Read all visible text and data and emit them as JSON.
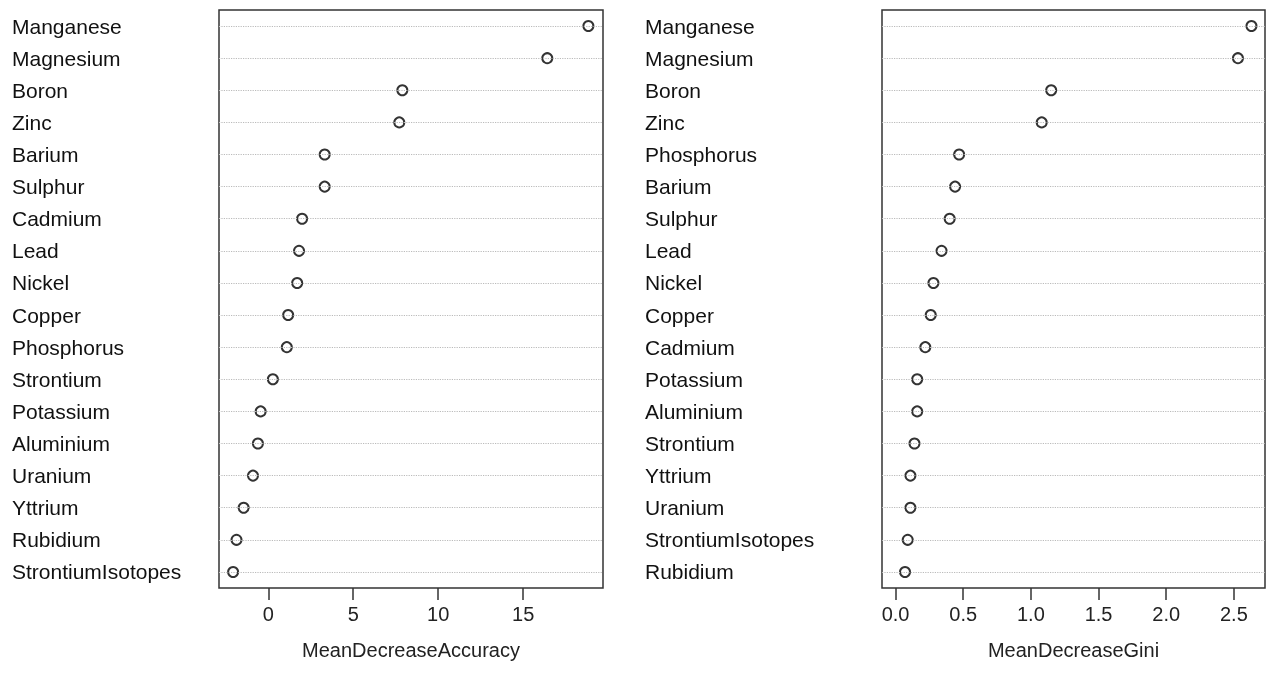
{
  "chart_data": [
    {
      "type": "scatter",
      "xlabel": "MeanDecreaseAccuracy",
      "categories": [
        "Manganese",
        "Magnesium",
        "Boron",
        "Zinc",
        "Barium",
        "Sulphur",
        "Cadmium",
        "Lead",
        "Nickel",
        "Copper",
        "Phosphorus",
        "Strontium",
        "Potassium",
        "Aluminium",
        "Uranium",
        "Yttrium",
        "Rubidium",
        "StrontiumIsotopes"
      ],
      "values": [
        18.84,
        16.42,
        7.89,
        7.71,
        3.32,
        3.32,
        1.99,
        1.81,
        1.7,
        1.17,
        1.09,
        0.27,
        -0.45,
        -0.61,
        -0.9,
        -1.45,
        -1.87,
        -2.07
      ],
      "color": "#000000",
      "marker": "circle",
      "grid": "y",
      "orientation": "horizontal",
      "xlim": [
        -2.9,
        19.7
      ],
      "xticks": [
        0,
        5,
        10,
        15
      ]
    },
    {
      "type": "scatter",
      "xlabel": "MeanDecreaseGini",
      "categories": [
        "Manganese",
        "Magnesium",
        "Boron",
        "Zinc",
        "Phosphorus",
        "Barium",
        "Sulphur",
        "Lead",
        "Nickel",
        "Copper",
        "Cadmium",
        "Potassium",
        "Aluminium",
        "Strontium",
        "Yttrium",
        "Uranium",
        "StrontiumIsotopes",
        "Rubidium"
      ],
      "values": [
        2.63,
        2.53,
        1.15,
        1.08,
        0.47,
        0.44,
        0.4,
        0.34,
        0.28,
        0.26,
        0.22,
        0.16,
        0.16,
        0.14,
        0.11,
        0.11,
        0.09,
        0.07
      ],
      "color": "#000000",
      "marker": "circle",
      "grid": "y",
      "orientation": "horizontal",
      "xlim": [
        -0.1,
        2.73
      ],
      "xticks": [
        {
          "value": 0,
          "label": "0.0"
        },
        {
          "value": 0.5,
          "label": "0.5"
        },
        {
          "value": 1,
          "label": "1.0"
        },
        {
          "value": 1.5,
          "label": "1.5"
        },
        {
          "value": 2,
          "label": "2.0"
        },
        {
          "value": 2.5,
          "label": "2.5"
        }
      ]
    }
  ]
}
